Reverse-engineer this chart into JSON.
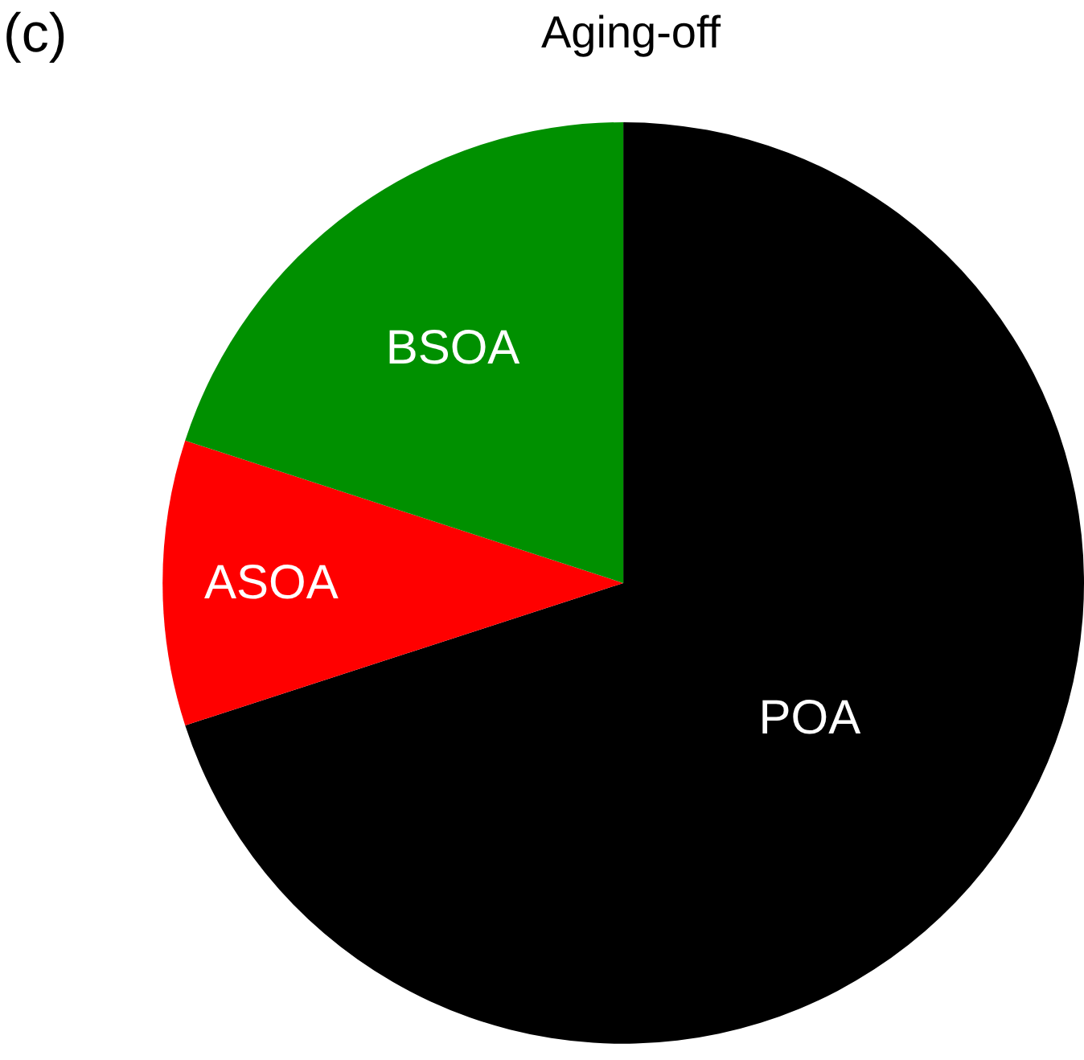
{
  "chart_data": {
    "type": "pie",
    "title": "Aging-off",
    "annotations": [
      "(c)"
    ],
    "categories": [
      "POA",
      "ASOA",
      "BSOA"
    ],
    "values": [
      70,
      10,
      20
    ],
    "colors": [
      "#000000",
      "#ff0000",
      "#009000"
    ]
  }
}
